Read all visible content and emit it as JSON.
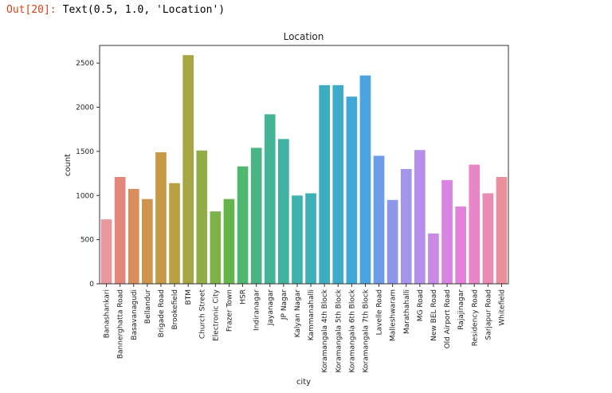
{
  "output": {
    "prompt": "Out[20]:",
    "text": "Text(0.5, 1.0, 'Location')"
  },
  "chart_data": {
    "type": "bar",
    "title": "Location",
    "xlabel": "city",
    "ylabel": "count",
    "ylim": [
      0,
      2700
    ],
    "yticks": [
      0,
      500,
      1000,
      1500,
      2000,
      2500
    ],
    "grid": false,
    "categories": [
      "Banashankari",
      "Bannerghatta Road",
      "Basavanagudi",
      "Bellandur",
      "Brigade Road",
      "Brookefield",
      "BTM",
      "Church Street",
      "Electronic City",
      "Frazer Town",
      "HSR",
      "Indiranagar",
      "Jayanagar",
      "JP Nagar",
      "Kalyan Nagar",
      "Kammanahalli",
      "Koramangala 4th Block",
      "Koramangala 5th Block",
      "Koramangala 6th Block",
      "Koramangala 7th Block",
      "Lavelle Road",
      "Malleshwaram",
      "Marathahalli",
      "MG Road",
      "New BEL Road",
      "Old Airport Road",
      "Rajajinagar",
      "Residency Road",
      "Sarjapur Road",
      "Whitefield"
    ],
    "values": [
      730,
      1210,
      1075,
      960,
      1490,
      1140,
      2590,
      1510,
      820,
      960,
      1330,
      1540,
      1920,
      1640,
      1000,
      1025,
      2250,
      2250,
      2120,
      2360,
      1450,
      950,
      1300,
      1515,
      570,
      1175,
      875,
      1350,
      1025,
      1210
    ],
    "colors": [
      "#e9979c",
      "#e2877c",
      "#d98e5b",
      "#cf954e",
      "#c69a45",
      "#b9a045",
      "#a6a643",
      "#92ad45",
      "#7db246",
      "#63b54b",
      "#4fb76e",
      "#49b585",
      "#45b496",
      "#41b3a2",
      "#3eb2ad",
      "#3db0b7",
      "#3daec2",
      "#3eabcb",
      "#40a8d6",
      "#4ba3e0",
      "#6d9de8",
      "#8e98ea",
      "#a495eb",
      "#b68fea",
      "#c98ae6",
      "#d884e2",
      "#e281da",
      "#e886c8",
      "#e98bb3",
      "#e9909e"
    ]
  }
}
